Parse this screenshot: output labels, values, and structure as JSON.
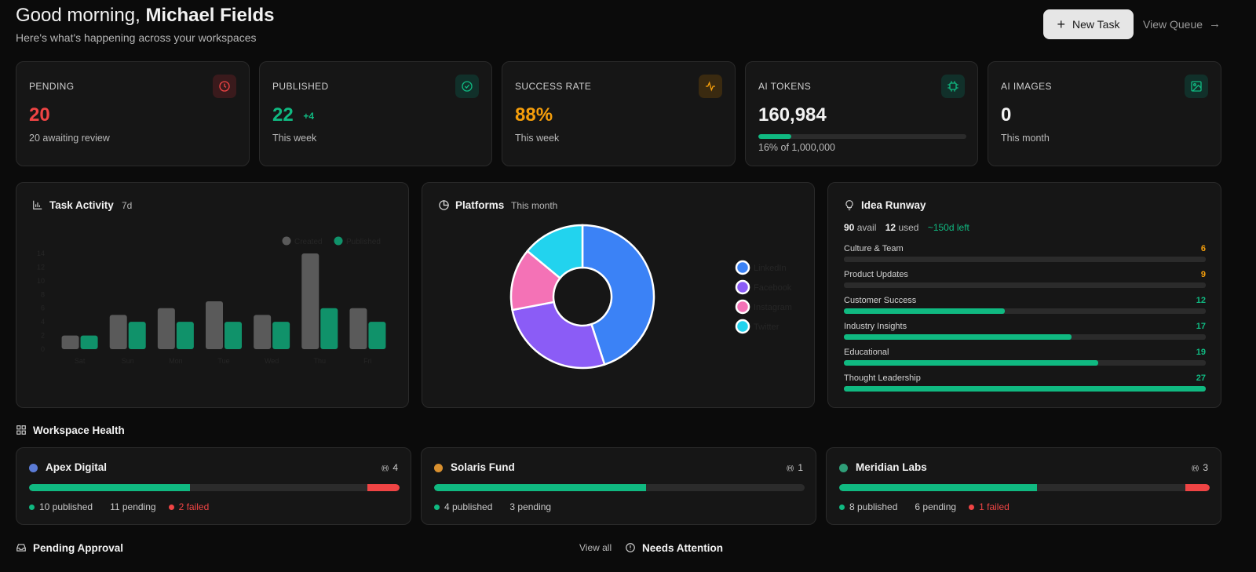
{
  "header": {
    "greeting_prefix": "Good morning,",
    "user_name": "Michael Fields",
    "subtitle": "Here's what's happening across your workspaces",
    "new_task_label": "New Task",
    "view_queue_label": "View Queue"
  },
  "stats": [
    {
      "label": "PENDING",
      "value": "20",
      "delta": "",
      "sub": "20 awaiting review",
      "color": "#ef4444",
      "icon": "clock-icon"
    },
    {
      "label": "PUBLISHED",
      "value": "22",
      "delta": "+4",
      "sub": "This week",
      "color": "#10b981",
      "icon": "check-circle-icon"
    },
    {
      "label": "SUCCESS RATE",
      "value": "88%",
      "delta": "",
      "sub": "This week",
      "color": "#f59e0b",
      "icon": "activity-icon"
    },
    {
      "label": "AI TOKENS",
      "value": "160,984",
      "delta": "",
      "sub": "16% of 1,000,000",
      "color": "#10b981",
      "icon": "chip-icon",
      "progress": 0.16
    },
    {
      "label": "AI IMAGES",
      "value": "0",
      "delta": "",
      "sub": "This month",
      "color": "#10b981",
      "icon": "image-icon"
    }
  ],
  "task_activity": {
    "title": "Task Activity",
    "badge": "7d"
  },
  "platforms": {
    "title": "Platforms",
    "badge": "This month"
  },
  "chart_data": [
    {
      "type": "bar",
      "categories": [
        "Sat",
        "Sun",
        "Mon",
        "Tue",
        "Wed",
        "Thu",
        "Fri"
      ],
      "series": [
        {
          "name": "Created",
          "values": [
            2,
            5,
            6,
            7,
            5,
            14,
            6
          ],
          "color": "#5a5a5a"
        },
        {
          "name": "Published",
          "values": [
            2,
            4,
            4,
            4,
            4,
            6,
            4
          ],
          "color": "#10926a"
        }
      ],
      "yticks": [
        0,
        2,
        4,
        6,
        8,
        10,
        12,
        14
      ],
      "ylim": [
        0,
        14
      ],
      "legend": "top-right",
      "grid": false
    },
    {
      "type": "pie",
      "labels": [
        "LinkedIn",
        "Facebook",
        "Instagram",
        "Twitter"
      ],
      "values": [
        45,
        27,
        14,
        14
      ],
      "colors": [
        "#3b82f6",
        "#8b5cf6",
        "#f472b6",
        "#22d3ee"
      ],
      "legend": "right"
    }
  ],
  "idea_runway": {
    "title": "Idea Runway",
    "avail_value": "90",
    "avail_label": "avail",
    "used_value": "12",
    "used_label": "used",
    "left_label": "~150d left",
    "max": 27,
    "items": [
      {
        "name": "Culture & Team",
        "count": "6",
        "value": 6,
        "color": "#f59e0b"
      },
      {
        "name": "Product Updates",
        "count": "9",
        "value": 9,
        "color": "#f59e0b"
      },
      {
        "name": "Customer Success",
        "count": "12",
        "value": 12,
        "color": "#10b981"
      },
      {
        "name": "Industry Insights",
        "count": "17",
        "value": 17,
        "color": "#10b981"
      },
      {
        "name": "Educational",
        "count": "19",
        "value": 19,
        "color": "#10b981"
      },
      {
        "name": "Thought Leadership",
        "count": "27",
        "value": 27,
        "color": "#10b981"
      }
    ]
  },
  "workspace_health": {
    "title": "Workspace Health",
    "workspaces": [
      {
        "name": "Apex Digital",
        "dot_color": "#5b7bd5",
        "signal": "4",
        "published_label": "10 published",
        "pending_label": "11 pending",
        "failed_label": "2 failed",
        "published": 10,
        "pending": 11,
        "failed": 2
      },
      {
        "name": "Solaris Fund",
        "dot_color": "#d9902f",
        "signal": "1",
        "published_label": "4 published",
        "pending_label": "3 pending",
        "failed_label": "",
        "published": 4,
        "pending": 3,
        "failed": 0
      },
      {
        "name": "Meridian Labs",
        "dot_color": "#2f9e78",
        "signal": "3",
        "published_label": "8 published",
        "pending_label": "6 pending",
        "failed_label": "1 failed",
        "published": 8,
        "pending": 6,
        "failed": 1
      }
    ]
  },
  "pending_approval": {
    "title": "Pending Approval",
    "view_all": "View all"
  },
  "needs_attention": {
    "title": "Needs Attention"
  }
}
